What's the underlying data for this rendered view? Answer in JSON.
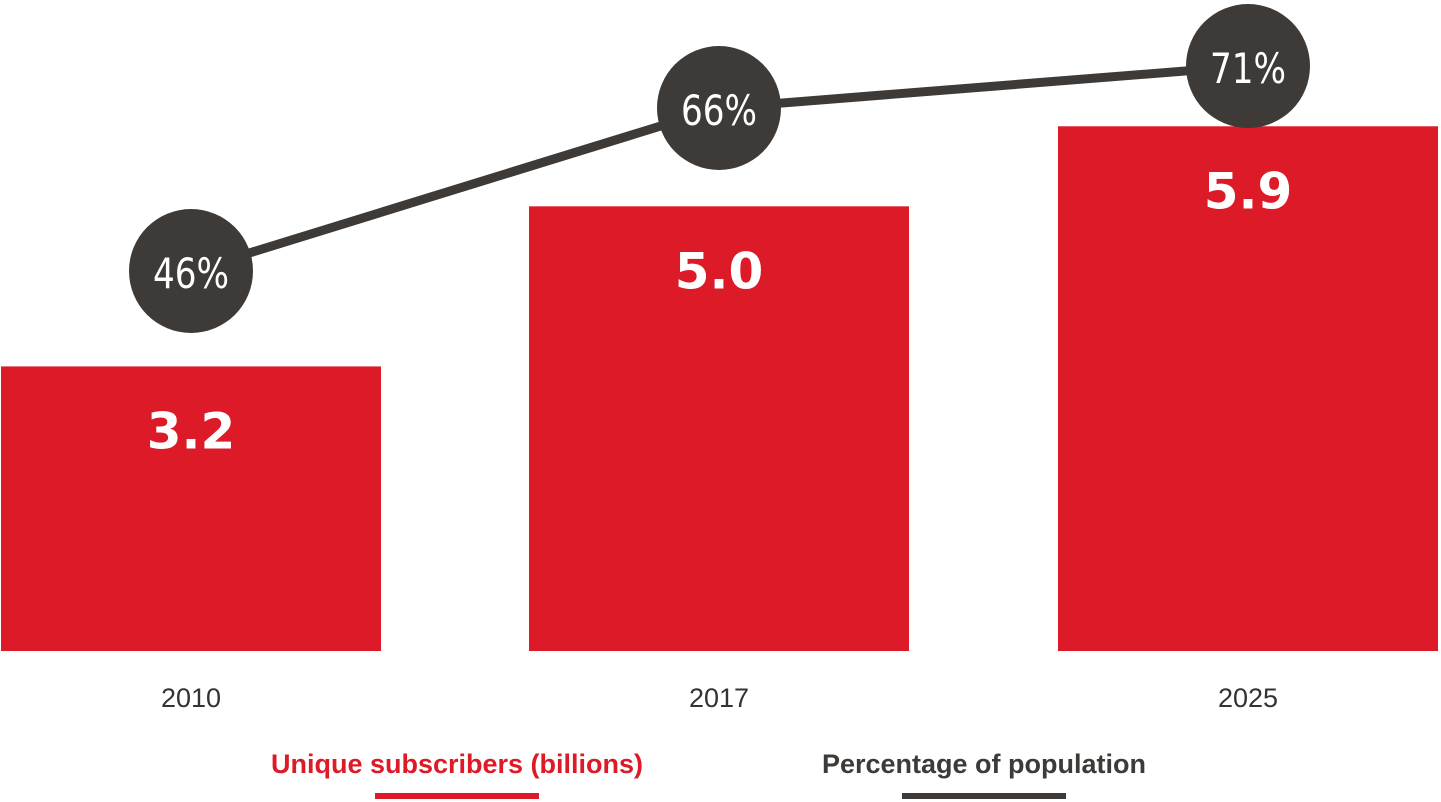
{
  "chart_data": {
    "type": "bar",
    "categories": [
      "2010",
      "2017",
      "2025"
    ],
    "series": [
      {
        "name": "Unique subscribers (billions)",
        "type": "bar",
        "values": [
          3.2,
          5.0,
          5.9
        ],
        "value_labels": [
          "3.2",
          "5.0",
          "5.9"
        ],
        "color": "#dc1a28"
      },
      {
        "name": "Percentage of population",
        "type": "line",
        "values": [
          46,
          66,
          71
        ],
        "value_labels": [
          "46%",
          "66%",
          "71%"
        ],
        "color": "#3d3a37"
      }
    ],
    "legend": [
      {
        "label": "Unique subscribers (billions)",
        "color": "#dc1a28"
      },
      {
        "label": "Percentage of population",
        "color": "#3d3a37"
      }
    ],
    "legend_position": "bottom",
    "grid": false,
    "ylim": [
      0,
      7.32
    ],
    "y2lim": [
      0,
      100
    ]
  }
}
